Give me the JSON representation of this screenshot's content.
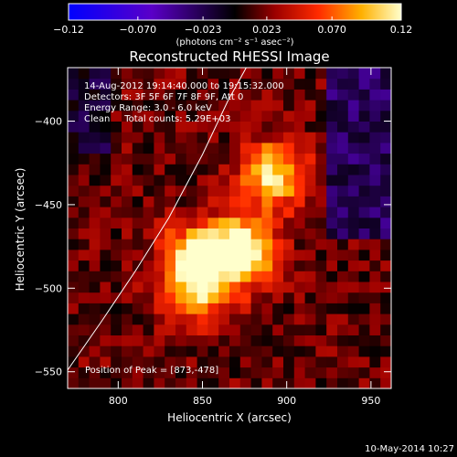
{
  "chart_data": {
    "type": "heatmap",
    "title": "Reconstructed RHESSI Image",
    "xlabel": "Heliocentric X (arcsec)",
    "ylabel": "Heliocentric Y (arcsec)",
    "xlim": [
      770,
      962
    ],
    "ylim": [
      -560,
      -368
    ],
    "xticks": [
      800,
      850,
      900,
      950
    ],
    "yticks": [
      -400,
      -450,
      -500,
      -550
    ],
    "grid": false,
    "colorbar": {
      "position": "top",
      "min": -0.12,
      "max": 0.12,
      "ticks": [
        -0.12,
        -0.07,
        -0.023,
        0.023,
        0.07,
        0.12
      ],
      "tick_labels": [
        "−0.12",
        "−0.070",
        "−0.023",
        "0.023",
        "0.070",
        "0.12"
      ],
      "unit_label": "(photons cm⁻² s⁻¹ asec⁻²)"
    },
    "annotations": [
      "14-Aug-2012 19:14:40.000 to 19:15:32.000",
      "Detectors: 3F 5F 6F 7F 8F 9F, Att 0",
      "Energy Range: 3.0 - 6.0 keV",
      "Clean     Total counts: 5.29E+03"
    ],
    "peak_label": "Position of Peak = [873,-478]",
    "peak": [
      873,
      -478
    ],
    "sources": [
      {
        "x": 873,
        "y": -478,
        "value": 0.12
      },
      {
        "x": 845,
        "y": -482,
        "value": 0.1
      },
      {
        "x": 892,
        "y": -432,
        "value": 0.095
      },
      {
        "x": 848,
        "y": -505,
        "value": 0.06
      }
    ],
    "limb_curve": [
      [
        770,
        -549
      ],
      [
        790,
        -520
      ],
      [
        810,
        -490
      ],
      [
        830,
        -458
      ],
      [
        850,
        -420
      ],
      [
        865,
        -388
      ],
      [
        876,
        -368
      ]
    ],
    "footer_date": "10-May-2014 10:27"
  }
}
